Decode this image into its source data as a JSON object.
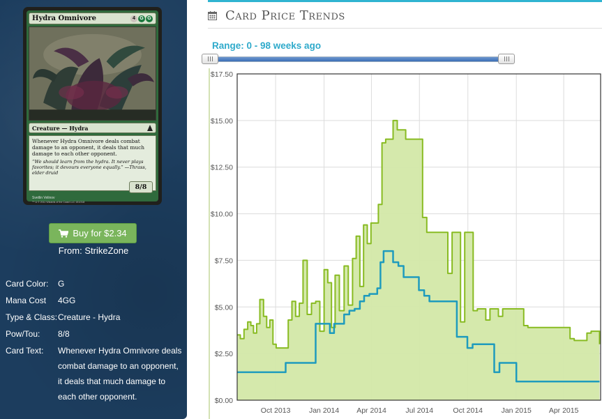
{
  "card": {
    "name": "Hydra Omnivore",
    "mana_symbols": [
      "4",
      "G",
      "G"
    ],
    "type_line": "Creature — Hydra",
    "rules_text": "Whenever Hydra Omnivore deals combat damage to an opponent, it deals that much damage to each other opponent.",
    "flavor_text": "“We should learn from the hydra. It never plays favorites; it devours everyone equally.” —Thrass, elder druid",
    "power_toughness": "8/8",
    "artist": "Svetlin Velinov",
    "copyright": "™ & © 2011 Wizards of the Coast LLC 151/318"
  },
  "buy": {
    "label": "Buy for $2.34",
    "from": "From: StrikeZone"
  },
  "details": [
    {
      "label": "Card Color:",
      "value": "G"
    },
    {
      "label": "Mana Cost",
      "value": "4GG"
    },
    {
      "label": "Type & Class:",
      "value": "Creature - Hydra"
    },
    {
      "label": "Pow/Tou:",
      "value": "8/8"
    },
    {
      "label": "Card Text:",
      "value": "Whenever Hydra Omnivore deals combat damage to an opponent, it deals that much damage to each other opponent."
    }
  ],
  "section": {
    "title": "Card Price Trends",
    "icon": "calendar-icon"
  },
  "range": {
    "label": "Range: 0 - 98 weeks ago",
    "start_weeks": 0,
    "end_weeks": 98,
    "max_weeks": 98
  },
  "colors": {
    "accent": "#30b4d1",
    "buy_button": "#7ab55c",
    "panel": "#1c3d5e",
    "fair_line": "#88bb22",
    "fair_fill": "#d3e8a8",
    "buy_line": "#1e9bbd"
  },
  "chart_data": {
    "type": "line",
    "title": "",
    "xlabel": "",
    "ylabel": "",
    "ylim": [
      0,
      17.5
    ],
    "xlim": [
      "2013-07-20",
      "2015-06-10"
    ],
    "yticks": [
      "$0.00",
      "$2.50",
      "$5.00",
      "$7.50",
      "$10.00",
      "$12.50",
      "$15.00",
      "$17.50"
    ],
    "ytick_values": [
      0,
      2.5,
      5,
      7.5,
      10,
      12.5,
      15,
      17.5
    ],
    "xticks": [
      "Oct 2013",
      "Jan 2014",
      "Apr 2014",
      "Jul 2014",
      "Oct 2014",
      "Jan 2015",
      "Apr 2015"
    ],
    "xtick_dates": [
      "2013-10-01",
      "2014-01-01",
      "2014-04-01",
      "2014-07-01",
      "2014-10-01",
      "2015-01-01",
      "2015-04-01"
    ],
    "grid": true,
    "series": [
      {
        "type": "area",
        "x": [
          "2013-07-20",
          "2013-07-26",
          "2013-08-02",
          "2013-08-09",
          "2013-08-15",
          "2013-08-20",
          "2013-08-26",
          "2013-09-01",
          "2013-09-08",
          "2013-09-14",
          "2013-09-20",
          "2013-09-26",
          "2013-10-02",
          "2013-10-10",
          "2013-10-18",
          "2013-10-25",
          "2013-11-01",
          "2013-11-08",
          "2013-11-15",
          "2013-11-22",
          "2013-11-30",
          "2013-12-08",
          "2013-12-16",
          "2013-12-24",
          "2014-01-01",
          "2014-01-08",
          "2014-01-15",
          "2014-01-22",
          "2014-01-30",
          "2014-02-08",
          "2014-02-16",
          "2014-02-24",
          "2014-03-03",
          "2014-03-10",
          "2014-03-17",
          "2014-03-24",
          "2014-03-31",
          "2014-04-07",
          "2014-04-14",
          "2014-04-21",
          "2014-04-28",
          "2014-05-05",
          "2014-05-12",
          "2014-05-20",
          "2014-05-28",
          "2014-06-05",
          "2014-06-13",
          "2014-06-21",
          "2014-06-29",
          "2014-07-07",
          "2014-07-15",
          "2014-07-23",
          "2014-07-31",
          "2014-08-08",
          "2014-08-16",
          "2014-08-24",
          "2014-09-01",
          "2014-09-09",
          "2014-09-17",
          "2014-09-25",
          "2014-10-03",
          "2014-10-11",
          "2014-10-19",
          "2014-10-27",
          "2014-11-04",
          "2014-11-12",
          "2014-11-20",
          "2014-11-28",
          "2014-12-06",
          "2014-12-14",
          "2014-12-22",
          "2014-12-30",
          "2015-01-07",
          "2015-01-15",
          "2015-01-23",
          "2015-01-31",
          "2015-02-08",
          "2015-02-16",
          "2015-02-24",
          "2015-03-04",
          "2015-03-12",
          "2015-03-20",
          "2015-03-28",
          "2015-04-05",
          "2015-04-13",
          "2015-04-21",
          "2015-04-29",
          "2015-05-07",
          "2015-05-15",
          "2015-05-23",
          "2015-05-31",
          "2015-06-08"
        ],
        "values": [
          3.5,
          3.3,
          3.8,
          4.2,
          4.0,
          3.6,
          4.1,
          5.4,
          4.5,
          3.9,
          4.3,
          3.0,
          2.8,
          2.8,
          2.8,
          4.3,
          5.3,
          4.5,
          5.2,
          7.5,
          4.6,
          5.2,
          5.3,
          3.7,
          7.0,
          6.3,
          3.9,
          6.7,
          4.8,
          7.2,
          5.1,
          7.6,
          8.8,
          6.1,
          9.4,
          8.4,
          9.5,
          9.5,
          10.5,
          13.8,
          14.0,
          14.0,
          15.0,
          14.5,
          14.5,
          14.0,
          14.0,
          14.0,
          14.0,
          9.8,
          9.0,
          9.0,
          9.0,
          9.0,
          9.0,
          6.8,
          9.0,
          9.0,
          4.2,
          9.0,
          9.0,
          4.8,
          4.9,
          4.9,
          4.3,
          4.9,
          4.9,
          4.5,
          4.9,
          4.9,
          4.9,
          4.9,
          4.9,
          4.0,
          3.9,
          3.9,
          3.9,
          3.9,
          3.9,
          3.9,
          3.9,
          3.9,
          3.9,
          3.9,
          3.3,
          3.2,
          3.2,
          3.2,
          3.6,
          3.7,
          3.7,
          3.0
        ]
      },
      {
        "type": "line",
        "x": [
          "2013-07-20",
          "2013-08-15",
          "2013-09-10",
          "2013-10-01",
          "2013-10-20",
          "2013-11-10",
          "2013-11-26",
          "2013-12-06",
          "2013-12-16",
          "2013-12-28",
          "2014-01-05",
          "2014-01-12",
          "2014-01-20",
          "2014-01-29",
          "2014-02-08",
          "2014-02-18",
          "2014-02-28",
          "2014-03-10",
          "2014-03-18",
          "2014-03-28",
          "2014-04-05",
          "2014-04-12",
          "2014-04-18",
          "2014-04-24",
          "2014-05-02",
          "2014-05-12",
          "2014-05-22",
          "2014-06-01",
          "2014-06-10",
          "2014-06-20",
          "2014-06-30",
          "2014-07-10",
          "2014-07-20",
          "2014-07-30",
          "2014-08-10",
          "2014-08-20",
          "2014-08-31",
          "2014-09-10",
          "2014-09-20",
          "2014-09-30",
          "2014-10-10",
          "2014-10-20",
          "2014-10-31",
          "2014-11-10",
          "2014-11-20",
          "2014-11-30",
          "2014-12-10",
          "2014-12-22",
          "2015-01-01",
          "2015-01-15",
          "2015-02-01",
          "2015-02-15",
          "2015-03-01",
          "2015-03-15",
          "2015-04-01",
          "2015-04-15",
          "2015-05-01",
          "2015-05-15",
          "2015-06-01",
          "2015-06-08"
        ],
        "values": [
          1.5,
          1.5,
          1.5,
          1.5,
          2.0,
          2.0,
          2.0,
          2.0,
          4.1,
          4.1,
          4.1,
          3.6,
          4.1,
          4.1,
          4.6,
          4.8,
          4.9,
          5.3,
          5.6,
          5.7,
          5.7,
          6.0,
          7.4,
          8.0,
          8.0,
          7.4,
          7.2,
          6.6,
          6.6,
          6.6,
          5.9,
          5.6,
          5.3,
          5.3,
          5.3,
          5.3,
          5.3,
          3.4,
          3.4,
          2.8,
          3.0,
          3.0,
          3.0,
          3.0,
          1.5,
          2.0,
          2.0,
          2.0,
          1.0,
          1.0,
          1.0,
          1.0,
          1.0,
          1.0,
          1.0,
          1.0,
          1.0,
          1.0,
          1.0,
          1.0
        ]
      }
    ]
  }
}
